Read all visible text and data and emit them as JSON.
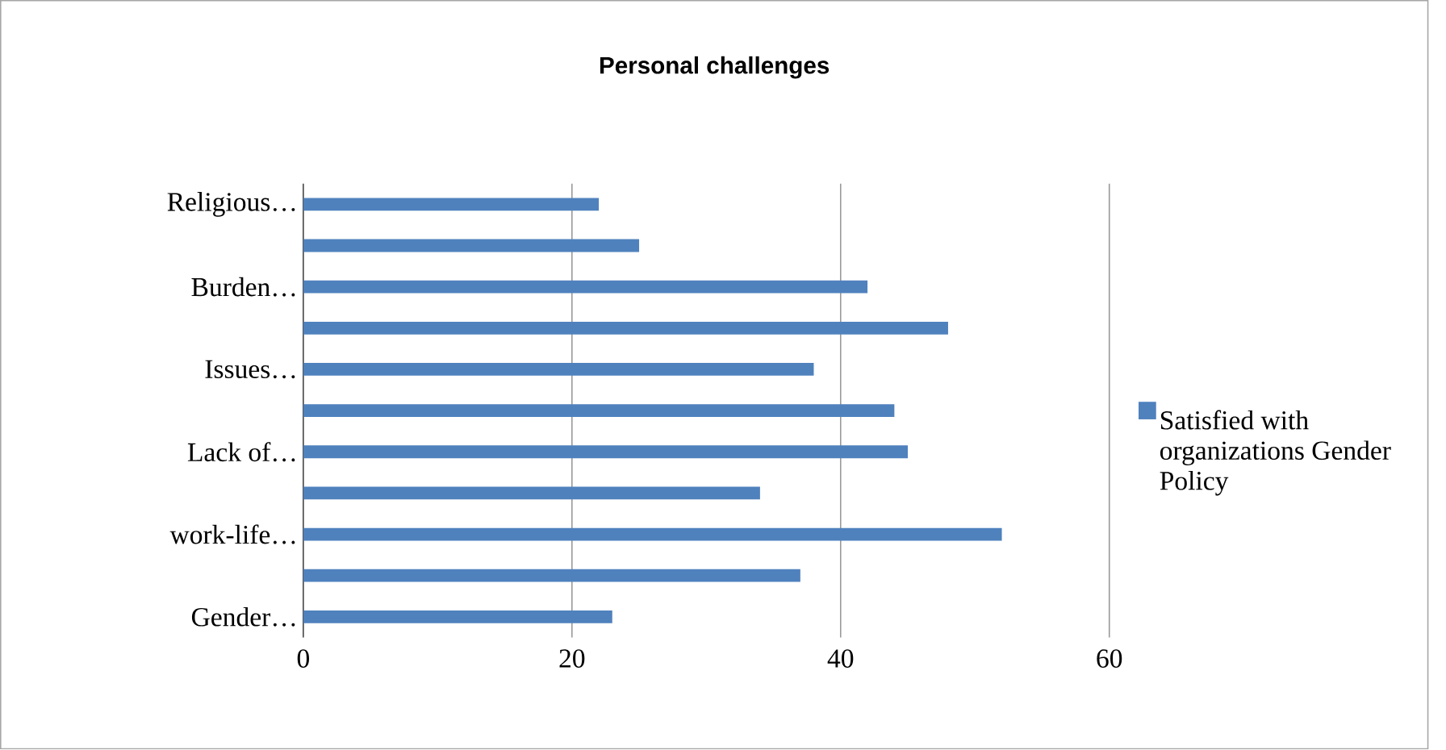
{
  "chart_data": {
    "type": "bar",
    "orientation": "horizontal",
    "title": "Personal challenges",
    "categories": [
      "Religious…",
      null,
      "Burden…",
      null,
      "Issues…",
      null,
      "Lack of…",
      null,
      "work-life…",
      null,
      "Gender…"
    ],
    "series": [
      {
        "name": "Satisfied with organizations Gender Policy",
        "color": "#4f81bd",
        "values": [
          22,
          25,
          42,
          48,
          38,
          44,
          45,
          34,
          52,
          37,
          23
        ]
      }
    ],
    "xlim": [
      0,
      60
    ],
    "xticks": [
      0,
      20,
      40,
      60
    ],
    "grid": "x",
    "legend": "right"
  }
}
